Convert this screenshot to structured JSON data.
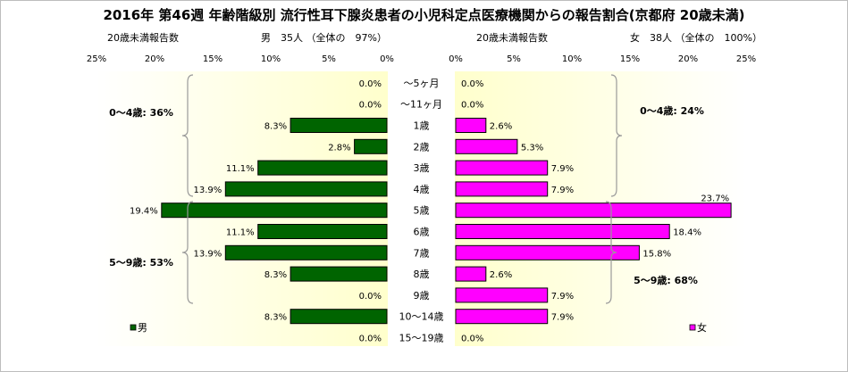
{
  "title": "2016年 第46週 年齢階級別 流行性耳下腺炎患者の小児科定点医療機関からの報告割合(京都府 20歳未満)",
  "headers": {
    "left_caption": "20歳未満報告数",
    "left_info": "男　35人 （全体の　97%）",
    "right_caption": "20歳未満報告数",
    "right_info": "女　38人 （全体の　100%）"
  },
  "colors": {
    "male": "#006400",
    "female": "#ff00ff",
    "plot_bg_edge": "#ffffff",
    "plot_bg_center": "#ffffcc",
    "bar_border": "#000000",
    "brace": "#9a9a9a"
  },
  "chart_data": {
    "type": "bar",
    "orientation": "horizontal-butterfly",
    "title": "2016年 第46週 年齢階級別 流行性耳下腺炎患者の小児科定点医療機関からの報告割合(京都府 20歳未満)",
    "categories": [
      "～5ヶ月",
      "～11ヶ月",
      "1歳",
      "2歳",
      "3歳",
      "4歳",
      "5歳",
      "6歳",
      "7歳",
      "8歳",
      "9歳",
      "10～14歳",
      "15～19歳"
    ],
    "x_ticks": [
      "25%",
      "20%",
      "15%",
      "10%",
      "5%",
      "0%"
    ],
    "x_ticks_right": [
      "0%",
      "5%",
      "10%",
      "15%",
      "20%",
      "25%"
    ],
    "xlim": [
      0,
      25
    ],
    "series": [
      {
        "name": "男",
        "values": [
          0.0,
          0.0,
          8.3,
          2.8,
          11.1,
          13.9,
          19.4,
          11.1,
          13.9,
          8.3,
          0.0,
          8.3,
          0.0
        ],
        "labels": [
          "0.0%",
          "0.0%",
          "8.3%",
          "2.8%",
          "11.1%",
          "13.9%",
          "19.4%",
          "11.1%",
          "13.9%",
          "8.3%",
          "0.0%",
          "8.3%",
          "0.0%"
        ]
      },
      {
        "name": "女",
        "values": [
          0.0,
          0.0,
          2.6,
          5.3,
          7.9,
          7.9,
          23.7,
          18.4,
          15.8,
          2.6,
          7.9,
          7.9,
          0.0
        ],
        "labels": [
          "0.0%",
          "0.0%",
          "2.6%",
          "5.3%",
          "7.9%",
          "7.9%",
          "23.7%",
          "18.4%",
          "15.8%",
          "2.6%",
          "7.9%",
          "7.9%",
          "0.0%"
        ]
      }
    ],
    "annotations": {
      "male_0_4": "0～4歳: 36%",
      "male_5_9": "5～9歳: 53%",
      "female_0_4": "0～4歳: 24%",
      "female_5_9": "5～9歳: 68%"
    },
    "legend": {
      "male": "男",
      "female": "女",
      "male_position": "bottom-left",
      "female_position": "bottom-right"
    }
  }
}
